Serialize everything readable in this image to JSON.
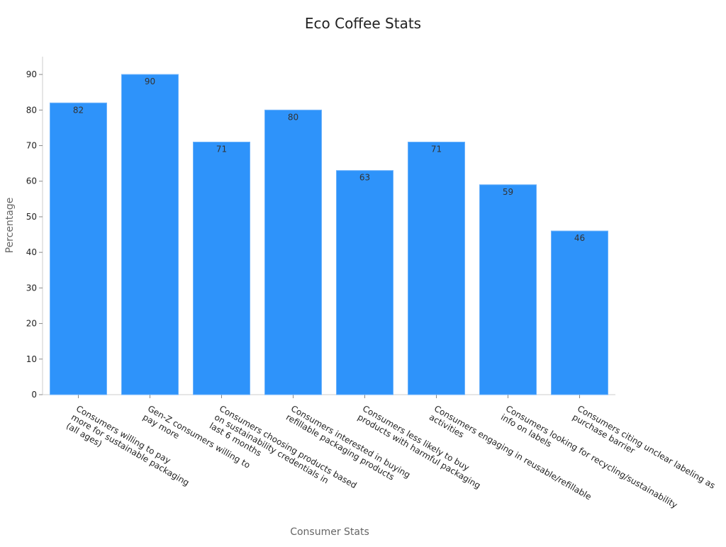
{
  "chart_data": {
    "type": "bar",
    "title": "Eco Coffee Stats",
    "x_label": "Consumer Stats",
    "y_label": "Percentage",
    "categories": [
      "Consumers willing to pay\nmore for sustainable packaging\n(all ages)",
      "Gen-Z consumers willing to\npay more",
      "Consumers choosing products based\non sustainability credentials in\nlast 6 months",
      "Consumers interested in buying\nrefillable packaging products",
      "Consumers less likely to buy\nproducts with harmful packaging",
      "Consumers engaging in reusable/refillable\nactivities",
      "Consumers looking for recycling/sustainability\ninfo on labels",
      "Consumers citing unclear labeling as\npurchase barrier"
    ],
    "values": [
      82,
      90,
      71,
      80,
      63,
      71,
      59,
      46
    ],
    "color": "#2e93fa",
    "ylim": [
      0,
      95
    ],
    "yticks": [
      0,
      10,
      20,
      30,
      40,
      50,
      60,
      70,
      80,
      90
    ],
    "grid": false
  }
}
